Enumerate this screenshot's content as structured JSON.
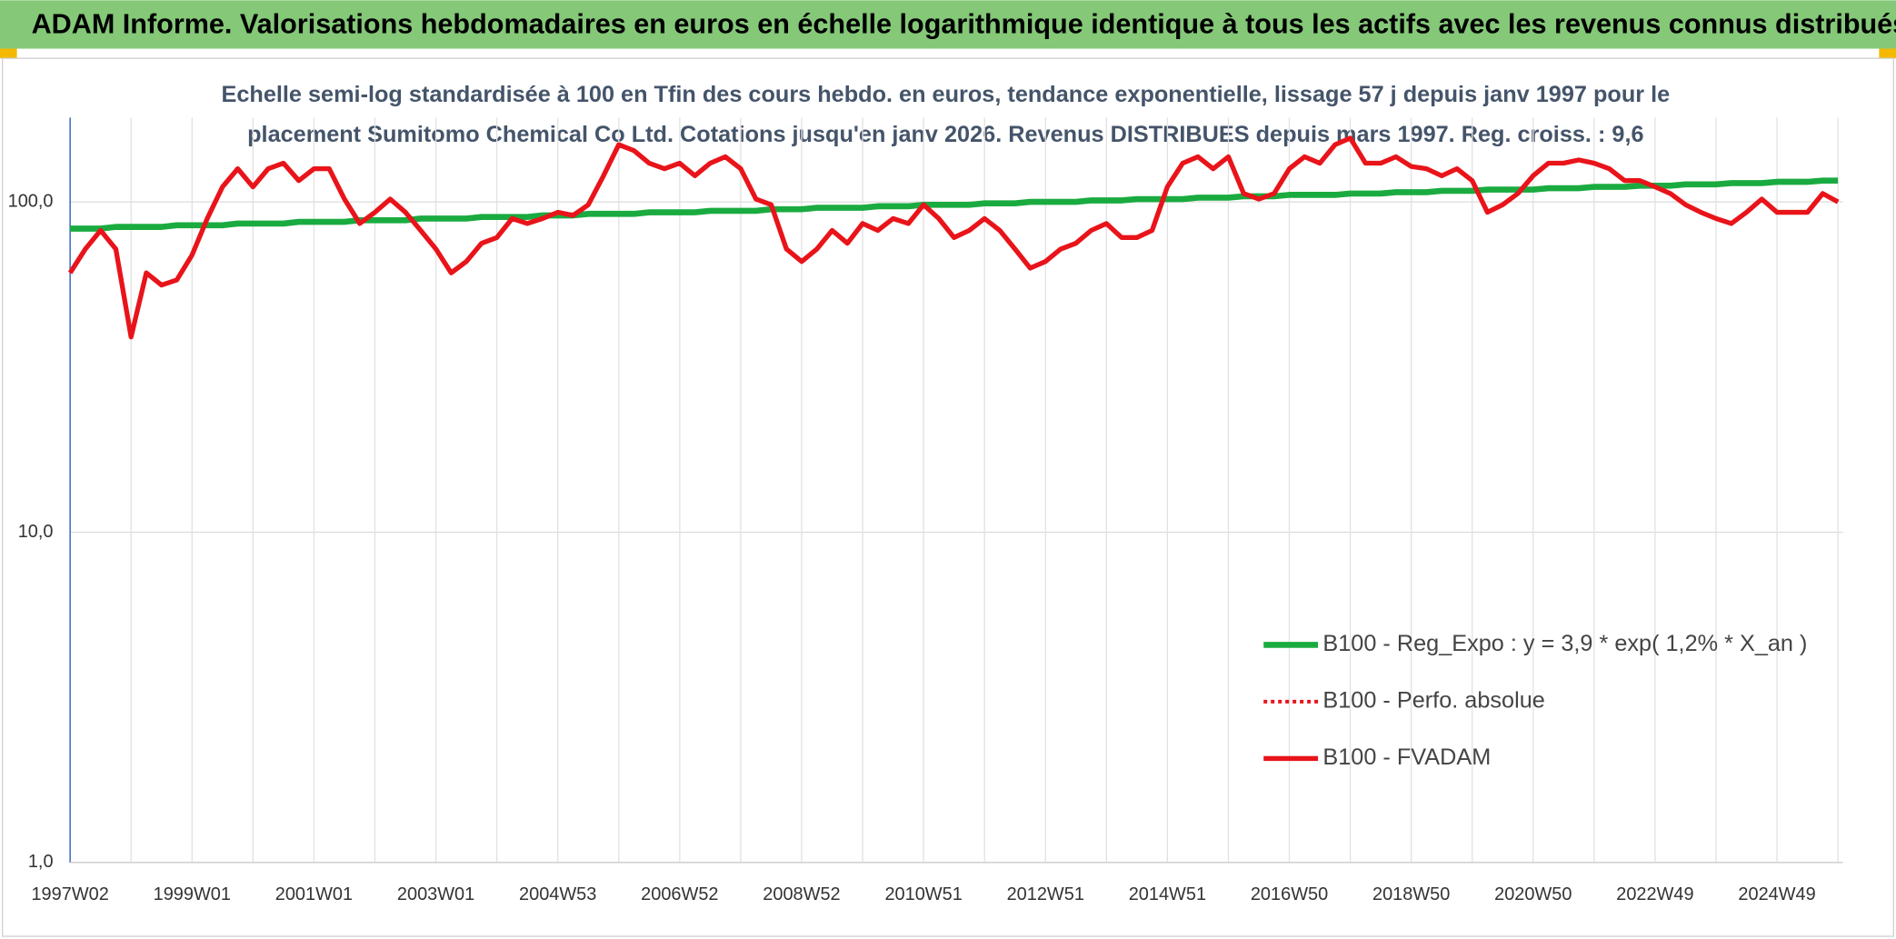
{
  "chart_data": {
    "type": "line",
    "title": "ADAM Informe. Valorisations hebdomadaires en euros en échelle logarithmique identique à tous les actifs avec les revenus connus distribués",
    "subtitle": [
      "Echelle semi-log standardisée à 100 en Tfin des cours hebdo. en euros, tendance exponentielle, lissage 57 j depuis janv 1997 pour le",
      "placement Sumitomo Chemical Co Ltd. Cotations jusqu'en janv 2026. Revenus DISTRIBUES depuis mars 1997. Reg. croiss. : 9,6"
    ],
    "log_scale": true,
    "grid": true,
    "legend": "right",
    "ylim": [
      1,
      180
    ],
    "yticks": [
      {
        "value": 1,
        "label": "1,0"
      },
      {
        "value": 10,
        "label": "10,0"
      },
      {
        "value": 100,
        "label": "100,0"
      }
    ],
    "categories": [
      "1997W02",
      null,
      null,
      null,
      null,
      null,
      null,
      null,
      "1999W01",
      null,
      null,
      null,
      null,
      null,
      null,
      null,
      "2001W01",
      null,
      null,
      null,
      null,
      null,
      null,
      null,
      "2003W01",
      null,
      null,
      null,
      null,
      null,
      null,
      null,
      "2004W53",
      null,
      null,
      null,
      null,
      null,
      null,
      null,
      "2006W52",
      null,
      null,
      null,
      null,
      null,
      null,
      null,
      "2008W52",
      null,
      null,
      null,
      null,
      null,
      null,
      null,
      "2010W51",
      null,
      null,
      null,
      null,
      null,
      null,
      null,
      "2012W51",
      null,
      null,
      null,
      null,
      null,
      null,
      null,
      "2014W51",
      null,
      null,
      null,
      null,
      null,
      null,
      null,
      "2016W50",
      null,
      null,
      null,
      null,
      null,
      null,
      null,
      "2018W50",
      null,
      null,
      null,
      null,
      null,
      null,
      null,
      "2020W50",
      null,
      null,
      null,
      null,
      null,
      null,
      null,
      "2022W49",
      null,
      null,
      null,
      null,
      null,
      null,
      null,
      "2024W49",
      null,
      null,
      null,
      null
    ],
    "series": [
      {
        "name": "B100 - Reg_Expo : y = 3,9 * exp( 1,2% *  X_an )",
        "color": "#1aab40",
        "style": "solid",
        "width": 5,
        "values": [
          83,
          83,
          83,
          84,
          84,
          84,
          84,
          85,
          85,
          85,
          85,
          86,
          86,
          86,
          86,
          87,
          87,
          87,
          87,
          88,
          88,
          88,
          88,
          89,
          89,
          89,
          89,
          90,
          90,
          90,
          90,
          91,
          91,
          91,
          92,
          92,
          92,
          92,
          93,
          93,
          93,
          93,
          94,
          94,
          94,
          94,
          95,
          95,
          95,
          96,
          96,
          96,
          96,
          97,
          97,
          97,
          98,
          98,
          98,
          98,
          99,
          99,
          99,
          100,
          100,
          100,
          100,
          101,
          101,
          101,
          102,
          102,
          102,
          102,
          103,
          103,
          103,
          104,
          104,
          104,
          105,
          105,
          105,
          105,
          106,
          106,
          106,
          107,
          107,
          107,
          108,
          108,
          108,
          109,
          109,
          109,
          109,
          110,
          110,
          110,
          111,
          111,
          111,
          112,
          112,
          112,
          113,
          113,
          113,
          114,
          114,
          114,
          115,
          115,
          115,
          116,
          116
        ]
      },
      {
        "name": "B100 - Perfo. absolue",
        "color": "#e8141a",
        "style": "dotted",
        "width": 3,
        "values": [
          61,
          72,
          82,
          72,
          39,
          61,
          56,
          58,
          69,
          89,
          111,
          126,
          111,
          126,
          131,
          116,
          126,
          126,
          102,
          86,
          93,
          102,
          93,
          82,
          72,
          61,
          66,
          75,
          78,
          89,
          86,
          89,
          93,
          91,
          98,
          120,
          149,
          143,
          131,
          126,
          131,
          120,
          131,
          137,
          126,
          102,
          98,
          72,
          66,
          72,
          82,
          75,
          86,
          82,
          89,
          86,
          98,
          89,
          78,
          82,
          89,
          82,
          72,
          63,
          66,
          72,
          75,
          82,
          86,
          78,
          78,
          82,
          111,
          131,
          137,
          126,
          137,
          106,
          102,
          106,
          126,
          137,
          131,
          149,
          156,
          131,
          131,
          137,
          128,
          126,
          120,
          126,
          116,
          93,
          98,
          106,
          120,
          131,
          131,
          134,
          131,
          126,
          116,
          116,
          111,
          106,
          98,
          93,
          89,
          86,
          93,
          102,
          93,
          93,
          93,
          106,
          100
        ]
      },
      {
        "name": "B100 - FVADAM",
        "color": "#e8141a",
        "style": "solid",
        "width": 4,
        "values": [
          61,
          72,
          82,
          72,
          39,
          61,
          56,
          58,
          69,
          89,
          111,
          126,
          111,
          126,
          131,
          116,
          126,
          126,
          102,
          86,
          93,
          102,
          93,
          82,
          72,
          61,
          66,
          75,
          78,
          89,
          86,
          89,
          93,
          91,
          98,
          120,
          149,
          143,
          131,
          126,
          131,
          120,
          131,
          137,
          126,
          102,
          98,
          72,
          66,
          72,
          82,
          75,
          86,
          82,
          89,
          86,
          98,
          89,
          78,
          82,
          89,
          82,
          72,
          63,
          66,
          72,
          75,
          82,
          86,
          78,
          78,
          82,
          111,
          131,
          137,
          126,
          137,
          106,
          102,
          106,
          126,
          137,
          131,
          149,
          156,
          131,
          131,
          137,
          128,
          126,
          120,
          126,
          116,
          93,
          98,
          106,
          120,
          131,
          131,
          134,
          131,
          126,
          116,
          116,
          111,
          106,
          98,
          93,
          89,
          86,
          93,
          102,
          93,
          93,
          93,
          106,
          100
        ]
      }
    ]
  }
}
